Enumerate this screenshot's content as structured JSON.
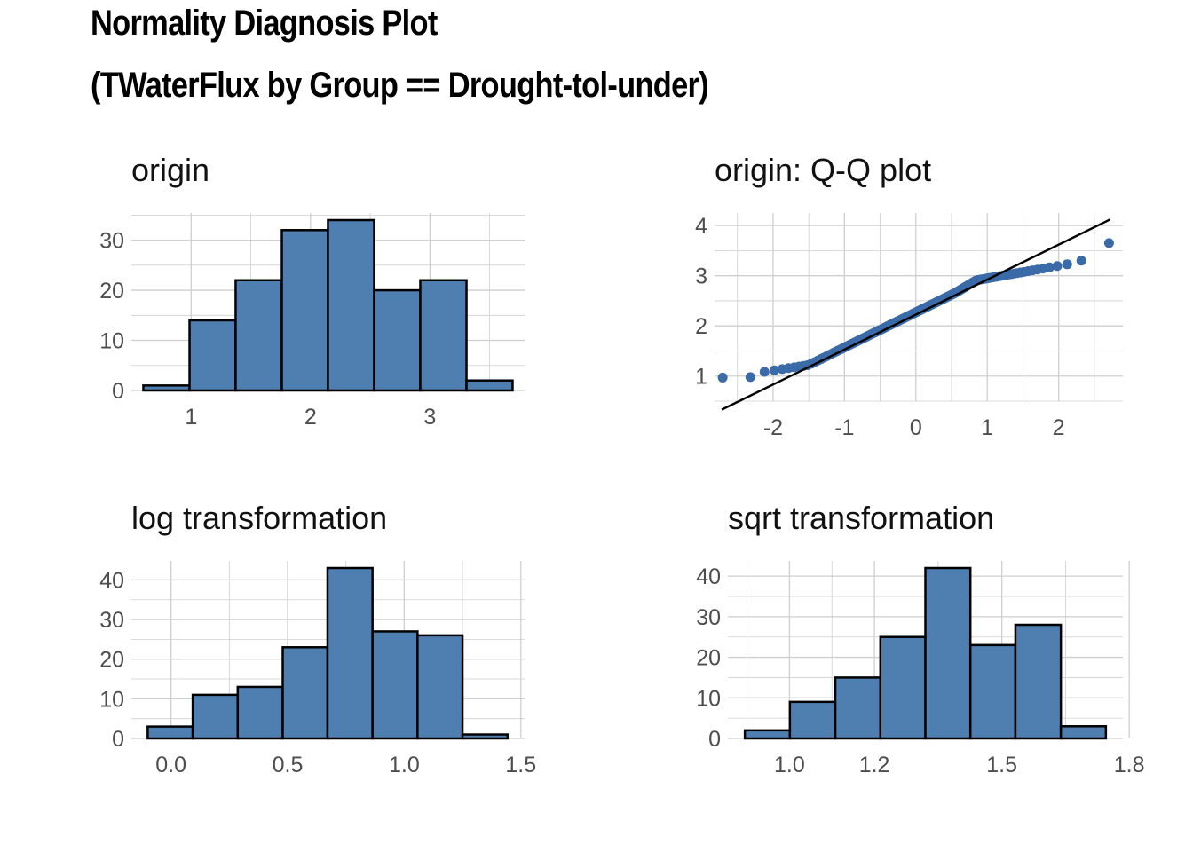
{
  "title": "Normality Diagnosis Plot",
  "subtitle": "(TWaterFlux by Group == Drought-tol-under)",
  "colors": {
    "fill": "#4f7fb0",
    "point": "#3a6aa7",
    "stroke": "#000000",
    "grid": "#cfcfcf"
  },
  "chart_data": [
    {
      "id": "origin",
      "type": "bar",
      "title": "origin",
      "bins": [
        {
          "x0": 0.6,
          "x1": 0.987,
          "count": 1
        },
        {
          "x0": 0.987,
          "x1": 1.373,
          "count": 14
        },
        {
          "x0": 1.373,
          "x1": 1.76,
          "count": 22
        },
        {
          "x0": 1.76,
          "x1": 2.146,
          "count": 32
        },
        {
          "x0": 2.146,
          "x1": 2.533,
          "count": 34
        },
        {
          "x0": 2.533,
          "x1": 2.919,
          "count": 20
        },
        {
          "x0": 2.919,
          "x1": 3.306,
          "count": 22
        },
        {
          "x0": 3.306,
          "x1": 3.692,
          "count": 2
        }
      ],
      "xlim": [
        0.5,
        3.8
      ],
      "ylim": [
        0,
        34
      ],
      "xticks": [
        1,
        2,
        3
      ],
      "xtick_labels": [
        "1",
        "2",
        "3"
      ],
      "yticks": [
        0,
        10,
        20,
        30
      ],
      "ytick_labels": [
        "0",
        "10",
        "20",
        "30"
      ],
      "grid": true
    },
    {
      "id": "qq",
      "type": "scatter",
      "title": "origin: Q-Q plot",
      "xlim": [
        -2.82,
        2.9
      ],
      "ylim": [
        0.5,
        4.25
      ],
      "xticks": [
        -2,
        -1,
        0,
        1,
        2
      ],
      "xtick_labels": [
        "-2",
        "-1",
        "0",
        "1",
        "2"
      ],
      "yticks": [
        1,
        2,
        3,
        4
      ],
      "ytick_labels": [
        "1",
        "2",
        "3",
        "4"
      ],
      "reference_line": {
        "x": [
          -2.72,
          2.72
        ],
        "y": [
          0.33,
          4.12
        ]
      },
      "grid": true
    },
    {
      "id": "log",
      "type": "bar",
      "title": "log transformation",
      "bins": [
        {
          "x0": -0.1,
          "x1": 0.093,
          "count": 3
        },
        {
          "x0": 0.093,
          "x1": 0.286,
          "count": 11
        },
        {
          "x0": 0.286,
          "x1": 0.479,
          "count": 13
        },
        {
          "x0": 0.479,
          "x1": 0.671,
          "count": 23
        },
        {
          "x0": 0.671,
          "x1": 0.864,
          "count": 43
        },
        {
          "x0": 0.864,
          "x1": 1.057,
          "count": 27
        },
        {
          "x0": 1.057,
          "x1": 1.25,
          "count": 26
        },
        {
          "x0": 1.25,
          "x1": 1.443,
          "count": 1
        }
      ],
      "xlim": [
        -0.17,
        1.52
      ],
      "ylim": [
        0,
        43
      ],
      "xticks": [
        0.0,
        0.5,
        1.0,
        1.5
      ],
      "xtick_labels": [
        "0.0",
        "0.5",
        "1.0",
        "1.5"
      ],
      "yticks": [
        0,
        10,
        20,
        30,
        40
      ],
      "ytick_labels": [
        "0",
        "10",
        "20",
        "30",
        "40"
      ],
      "grid": true
    },
    {
      "id": "sqrt",
      "type": "bar",
      "title": "sqrt transformation",
      "bins": [
        {
          "x0": 0.895,
          "x1": 1.001,
          "count": 2
        },
        {
          "x0": 1.001,
          "x1": 1.108,
          "count": 9
        },
        {
          "x0": 1.108,
          "x1": 1.214,
          "count": 15
        },
        {
          "x0": 1.214,
          "x1": 1.32,
          "count": 25
        },
        {
          "x0": 1.32,
          "x1": 1.426,
          "count": 42
        },
        {
          "x0": 1.426,
          "x1": 1.532,
          "count": 23
        },
        {
          "x0": 1.532,
          "x1": 1.639,
          "count": 28
        },
        {
          "x0": 1.639,
          "x1": 1.745,
          "count": 3
        }
      ],
      "xlim": [
        0.855,
        1.785
      ],
      "ylim": [
        0,
        42
      ],
      "xticks": [
        1.0,
        1.2,
        1.5,
        1.8
      ],
      "xtick_labels": [
        "1.0",
        "1.2",
        "1.5",
        "1.8"
      ],
      "yticks": [
        0,
        10,
        20,
        30,
        40
      ],
      "ytick_labels": [
        "0",
        "10",
        "20",
        "30",
        "40"
      ],
      "grid": true
    }
  ]
}
